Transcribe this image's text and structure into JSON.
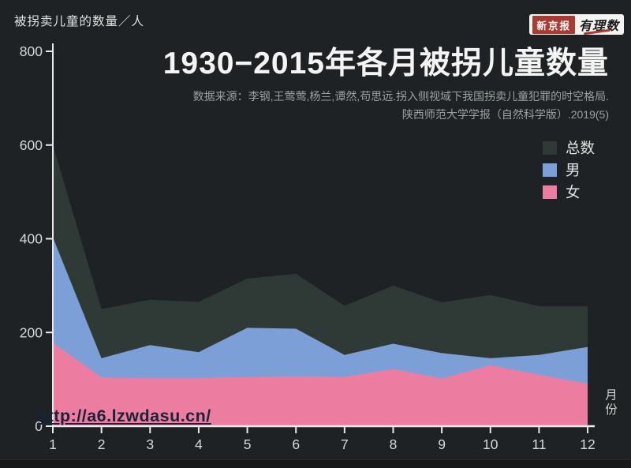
{
  "page": {
    "y_axis_title": "被拐卖儿童的数量／人",
    "x_axis_title": "月份",
    "watermark": "http://a6.lzwdasu.cn/"
  },
  "logo": {
    "brand_box": "新京报",
    "brand_script": "有理数"
  },
  "header": {
    "title": "1930−2015年各月被拐儿童数量",
    "source_line1": "数据来源：李钢,王莺莺,杨兰,谭然,苟思远.拐入侧视域下我国拐卖儿童犯罪的时空格局.",
    "source_line2": "陕西师范大学学报（自然科学版）.2019(5)"
  },
  "colors": {
    "background": "#1e2224",
    "total": "#2f3a37",
    "male": "#7d9fd8",
    "female": "#ed7da0",
    "axis": "#e8eaea",
    "tick_label": "#d6d8d8",
    "brand_red": "#a93b32"
  },
  "chart_data": {
    "type": "area",
    "title": "1930−2015年各月被拐儿童数量",
    "xlabel": "月份",
    "ylabel": "被拐卖儿童的数量／人",
    "categories": [
      "1",
      "2",
      "3",
      "4",
      "5",
      "6",
      "7",
      "8",
      "9",
      "10",
      "11",
      "12"
    ],
    "series": [
      {
        "key": "total",
        "name": "总数",
        "color": "#2f3a37",
        "values": [
          600,
          250,
          270,
          265,
          315,
          325,
          257,
          300,
          264,
          280,
          256,
          256
        ]
      },
      {
        "key": "male",
        "name": "男",
        "color": "#7d9fd8",
        "values": [
          403,
          145,
          173,
          158,
          210,
          208,
          152,
          176,
          156,
          145,
          152,
          169
        ]
      },
      {
        "key": "female",
        "name": "女",
        "color": "#ed7da0",
        "values": [
          178,
          104,
          103,
          103,
          105,
          106,
          105,
          122,
          102,
          130,
          110,
          91
        ]
      }
    ],
    "ylim": [
      0,
      800
    ],
    "y_ticks": [
      0,
      200,
      400,
      600,
      800
    ],
    "legend_position": "top-right",
    "grid": false,
    "overlap_mode": "layered (not stacked): total behind, male middle, female front"
  }
}
